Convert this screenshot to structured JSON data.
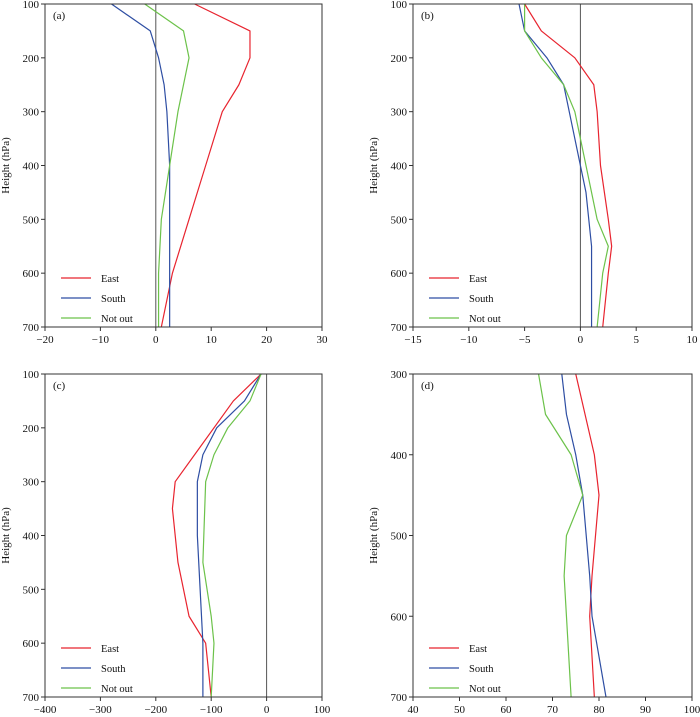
{
  "colors": {
    "East": "#e8242f",
    "South": "#2e4ea3",
    "Not out": "#6cc24a",
    "axis": "#333333",
    "zero": "#555555"
  },
  "chart_data": [
    {
      "type": "line",
      "panel": "(a)",
      "ylabel": "Height (hPa)",
      "xlim": [
        -20,
        30
      ],
      "ylim": [
        100,
        700
      ],
      "xticks": [
        "−20",
        "−10",
        "0",
        "10",
        "20",
        "30"
      ],
      "xtick_values": [
        -20,
        -10,
        0,
        10,
        20,
        30
      ],
      "yticks": [
        "100",
        "200",
        "300",
        "400",
        "500",
        "600",
        "700"
      ],
      "ytick_values": [
        100,
        200,
        300,
        400,
        500,
        600,
        700
      ],
      "zero_line": 0,
      "legend_position": "bottom-left",
      "series": [
        {
          "name": "East",
          "x": [
            7,
            17,
            17,
            15,
            12,
            9,
            6,
            3,
            1
          ],
          "y": [
            100,
            150,
            200,
            250,
            300,
            400,
            500,
            600,
            700
          ]
        },
        {
          "name": "South",
          "x": [
            -8,
            -1,
            0.5,
            1.5,
            2,
            2.5,
            2.5,
            2.5,
            2.5
          ],
          "y": [
            100,
            150,
            200,
            250,
            300,
            400,
            500,
            600,
            700
          ]
        },
        {
          "name": "Not out",
          "x": [
            -2,
            5,
            6,
            5,
            4,
            2.5,
            1,
            0.5,
            0.5
          ],
          "y": [
            100,
            150,
            200,
            250,
            300,
            400,
            500,
            600,
            700
          ]
        }
      ]
    },
    {
      "type": "line",
      "panel": "(b)",
      "ylabel": "Height (hPa)",
      "xlim": [
        -15,
        10
      ],
      "ylim": [
        100,
        700
      ],
      "xticks": [
        "−15",
        "−10",
        "−5",
        "0",
        "5",
        "10"
      ],
      "xtick_values": [
        -15,
        -10,
        -5,
        0,
        5,
        10
      ],
      "yticks": [
        "100",
        "200",
        "300",
        "400",
        "500",
        "600",
        "700"
      ],
      "ytick_values": [
        100,
        200,
        300,
        400,
        500,
        600,
        700
      ],
      "zero_line": 0,
      "legend_position": "bottom-left",
      "series": [
        {
          "name": "East",
          "x": [
            -5,
            -3.5,
            -0.5,
            1.2,
            1.5,
            1.8,
            2.5,
            2.8,
            2.5,
            2.0
          ],
          "y": [
            100,
            150,
            200,
            250,
            300,
            400,
            500,
            550,
            600,
            700
          ]
        },
        {
          "name": "South",
          "x": [
            -5.5,
            -5,
            -3,
            -1.5,
            -1,
            0,
            0.5,
            1,
            1,
            1
          ],
          "y": [
            100,
            150,
            200,
            250,
            300,
            400,
            450,
            550,
            600,
            700
          ]
        },
        {
          "name": "Not out",
          "x": [
            -5,
            -5,
            -3.5,
            -1.5,
            -0.5,
            0.5,
            1.5,
            2.5,
            2.0,
            1.5
          ],
          "y": [
            100,
            150,
            200,
            250,
            300,
            400,
            500,
            550,
            600,
            700
          ]
        }
      ]
    },
    {
      "type": "line",
      "panel": "(c)",
      "ylabel": "Height (hPa)",
      "xlim": [
        -400,
        100
      ],
      "ylim": [
        100,
        700
      ],
      "xticks": [
        "−400",
        "−300",
        "−200",
        "−100",
        "0",
        "100"
      ],
      "xtick_values": [
        -400,
        -300,
        -200,
        -100,
        0,
        100
      ],
      "yticks": [
        "100",
        "200",
        "300",
        "400",
        "500",
        "600",
        "700"
      ],
      "ytick_values": [
        100,
        200,
        300,
        400,
        500,
        600,
        700
      ],
      "zero_line": 0,
      "legend_position": "bottom-left",
      "series": [
        {
          "name": "East",
          "x": [
            -10,
            -60,
            -130,
            -165,
            -170,
            -160,
            -140,
            -110,
            -100
          ],
          "y": [
            100,
            150,
            250,
            300,
            350,
            450,
            550,
            600,
            700
          ]
        },
        {
          "name": "South",
          "x": [
            -10,
            -40,
            -90,
            -115,
            -125,
            -125,
            -120,
            -115,
            -115
          ],
          "y": [
            100,
            150,
            200,
            250,
            300,
            400,
            500,
            600,
            700
          ]
        },
        {
          "name": "Not out",
          "x": [
            -10,
            -30,
            -70,
            -95,
            -110,
            -115,
            -100,
            -95,
            -100
          ],
          "y": [
            100,
            150,
            200,
            250,
            300,
            450,
            550,
            600,
            700
          ]
        }
      ]
    },
    {
      "type": "line",
      "panel": "(d)",
      "ylabel": "Height (hPa)",
      "xlim": [
        40,
        100
      ],
      "ylim": [
        300,
        700
      ],
      "xticks": [
        "40",
        "50",
        "60",
        "70",
        "80",
        "90",
        "100"
      ],
      "xtick_values": [
        40,
        50,
        60,
        70,
        80,
        90,
        100
      ],
      "yticks": [
        "300",
        "400",
        "500",
        "600",
        "700"
      ],
      "ytick_values": [
        300,
        400,
        500,
        600,
        700
      ],
      "zero_line": null,
      "legend_position": "bottom-left",
      "series": [
        {
          "name": "East",
          "x": [
            75,
            77,
            79,
            80,
            78.5,
            78,
            78.5,
            79
          ],
          "y": [
            300,
            350,
            400,
            450,
            550,
            600,
            650,
            700
          ]
        },
        {
          "name": "South",
          "x": [
            72,
            73,
            75,
            76.5,
            78,
            78.5,
            80,
            81.5
          ],
          "y": [
            300,
            350,
            400,
            450,
            550,
            600,
            650,
            700
          ]
        },
        {
          "name": "Not out",
          "x": [
            67,
            68.5,
            74,
            76.5,
            73,
            72.5,
            73,
            74
          ],
          "y": [
            300,
            350,
            400,
            450,
            500,
            550,
            600,
            700
          ]
        }
      ]
    }
  ]
}
